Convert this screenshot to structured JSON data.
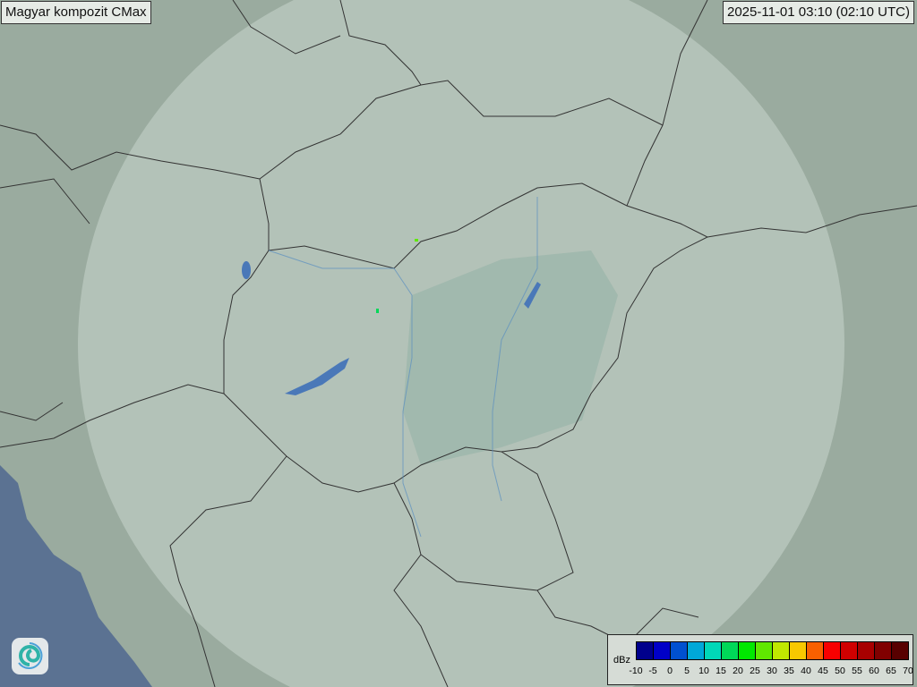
{
  "header": {
    "title": "Magyar kompozit  CMax",
    "timestamp": "2025-11-01 03:10 (02:10 UTC)"
  },
  "map": {
    "background_color": "#9aab9f",
    "radar_coverage_color": "#c9d6cc",
    "sea_color": "#5b7292",
    "echoes": [
      {
        "color": "#60e800"
      },
      {
        "color": "#00d858"
      }
    ]
  },
  "legend": {
    "unit": "dBz",
    "ticks": [
      "-10",
      "-5",
      "0",
      "5",
      "10",
      "15",
      "20",
      "25",
      "30",
      "35",
      "40",
      "45",
      "50",
      "55",
      "60",
      "65",
      "70"
    ],
    "colors": [
      "#00008c",
      "#0000c8",
      "#0050d0",
      "#00a8d8",
      "#00d8b8",
      "#00d858",
      "#00e800",
      "#60e800",
      "#c0e800",
      "#f8c800",
      "#f86000",
      "#f80000",
      "#d00000",
      "#a80000",
      "#800000",
      "#580000"
    ]
  },
  "logo": {
    "icon": "swirl-logo-icon"
  }
}
